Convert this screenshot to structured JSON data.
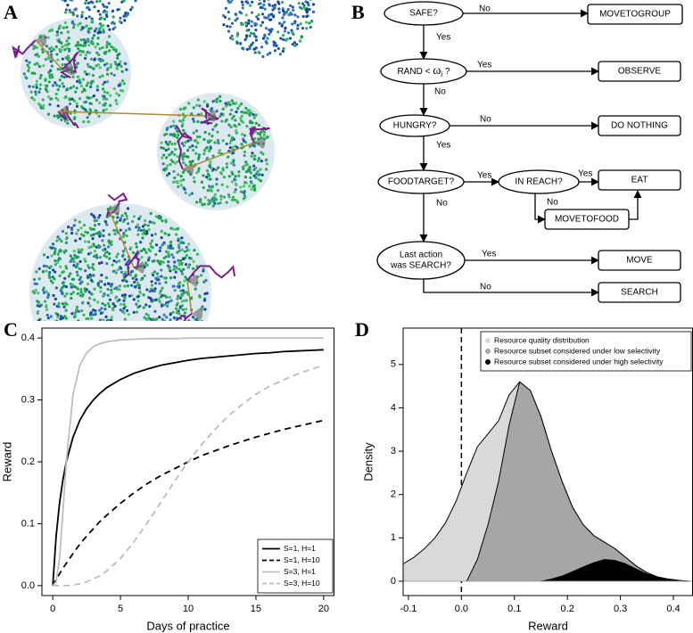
{
  "panel_labels": [
    "A",
    "B",
    "C",
    "D"
  ],
  "flowchart": {
    "nodes": [
      {
        "label": "SAFE?"
      },
      {
        "label": "MOVETOGROUP"
      },
      {
        "label": [
          "RAND < ",
          "ω",
          "i",
          " ?"
        ]
      },
      {
        "label": "OBSERVE"
      },
      {
        "label": "HUNGRY?"
      },
      {
        "label": "DO NOTHING"
      },
      {
        "label": "FOODTARGET?"
      },
      {
        "label": "IN REACH?"
      },
      {
        "label": "EAT"
      },
      {
        "label": "MOVETOFOOD"
      },
      {
        "label": [
          "Last action",
          "was SEARCH?"
        ]
      },
      {
        "label": "MOVE"
      },
      {
        "label": "SEARCH"
      }
    ],
    "edge_labels": [
      "No",
      "Yes",
      "Yes",
      "No",
      "No",
      "Yes",
      "Yes",
      "Yes",
      "No",
      "No",
      "Yes",
      "No"
    ]
  },
  "chart_data": [
    {
      "type": "line",
      "xlabel": "Days of practice",
      "ylabel": "Reward",
      "x": [
        0,
        0.25,
        0.5,
        0.75,
        1,
        1.5,
        2,
        2.5,
        3,
        3.5,
        4,
        5,
        6,
        7,
        8,
        9,
        10,
        11,
        12,
        13,
        14,
        15,
        16,
        17,
        18,
        19,
        20
      ],
      "series": [
        {
          "name": "S=1, H=1",
          "color": "#000000",
          "linestyle": "solid",
          "values": [
            0,
            0.08,
            0.133,
            0.171,
            0.2,
            0.24,
            0.267,
            0.286,
            0.3,
            0.311,
            0.32,
            0.333,
            0.343,
            0.35,
            0.356,
            0.36,
            0.364,
            0.367,
            0.369,
            0.371,
            0.373,
            0.375,
            0.376,
            0.378,
            0.379,
            0.38,
            0.381
          ]
        },
        {
          "name": "S=1, H=10",
          "color": "#000000",
          "linestyle": "dashed",
          "values": [
            0,
            0.01,
            0.019,
            0.028,
            0.036,
            0.052,
            0.067,
            0.08,
            0.092,
            0.104,
            0.114,
            0.133,
            0.15,
            0.165,
            0.178,
            0.189,
            0.2,
            0.21,
            0.218,
            0.226,
            0.233,
            0.24,
            0.246,
            0.252,
            0.257,
            0.262,
            0.267
          ]
        },
        {
          "name": "S=3, H=1",
          "color": "#bdbdbd",
          "linestyle": "solid",
          "values": [
            0,
            0.006,
            0.044,
            0.119,
            0.2,
            0.309,
            0.356,
            0.376,
            0.386,
            0.391,
            0.394,
            0.397,
            0.398,
            0.399,
            0.399,
            0.399,
            0.4,
            0.4,
            0.4,
            0.4,
            0.4,
            0.4,
            0.4,
            0.4,
            0.4,
            0.4,
            0.4
          ]
        },
        {
          "name": "S=3, H=10",
          "color": "#bdbdbd",
          "linestyle": "dashed",
          "values": [
            0,
            0,
            0,
            0,
            0,
            0.001,
            0.003,
            0.006,
            0.011,
            0.016,
            0.024,
            0.044,
            0.071,
            0.102,
            0.135,
            0.169,
            0.2,
            0.228,
            0.253,
            0.275,
            0.293,
            0.309,
            0.322,
            0.332,
            0.341,
            0.349,
            0.356
          ]
        }
      ],
      "xlim": [
        -0.8,
        20.8
      ],
      "ylim": [
        -0.016,
        0.416
      ],
      "xticks": [
        0,
        5,
        10,
        15,
        20
      ],
      "yticks": [
        {
          "value": 0,
          "label": "0.0"
        },
        0.1,
        0.2,
        0.3,
        0.4
      ],
      "legend": "lower right"
    },
    {
      "type": "area",
      "xlabel": "Reward",
      "ylabel": "Density",
      "x": [
        -0.11,
        -0.09,
        -0.07,
        -0.05,
        -0.03,
        -0.01,
        0.01,
        0.03,
        0.05,
        0.07,
        0.09,
        0.11,
        0.13,
        0.15,
        0.17,
        0.19,
        0.21,
        0.23,
        0.25,
        0.27,
        0.29,
        0.31,
        0.33,
        0.35,
        0.37,
        0.39,
        0.41,
        0.43
      ],
      "series": [
        {
          "name": "Resource quality distribution",
          "color": "#d9d9d9",
          "values": [
            0.4,
            0.55,
            0.75,
            1.0,
            1.35,
            1.85,
            2.5,
            3.1,
            3.4,
            3.7,
            4.3,
            4.6,
            4.4,
            3.8,
            3.0,
            2.3,
            1.7,
            1.3,
            1.05,
            0.9,
            0.75,
            0.55,
            0.35,
            0.2,
            0.1,
            0.05,
            0.02,
            0
          ]
        },
        {
          "name": "Resource subset considered under low selectivity",
          "color": "#a6a6a6",
          "values": [
            null,
            null,
            null,
            null,
            null,
            null,
            0,
            0.5,
            1.3,
            2.3,
            3.6,
            4.6,
            4.4,
            3.8,
            3.0,
            2.3,
            1.7,
            1.3,
            1.05,
            0.9,
            0.75,
            0.55,
            0.35,
            0.2,
            0.1,
            0.05,
            0.02,
            0
          ]
        },
        {
          "name": "Resource subset considered under high selectivity",
          "color": "#000000",
          "values": [
            null,
            null,
            null,
            null,
            null,
            null,
            null,
            null,
            null,
            null,
            null,
            null,
            null,
            0,
            0.05,
            0.12,
            0.22,
            0.33,
            0.43,
            0.5,
            0.48,
            0.4,
            0.28,
            0.17,
            0.09,
            0.04,
            0.01,
            0
          ]
        }
      ],
      "xlim": [
        -0.11,
        0.437
      ],
      "ylim": [
        -0.33,
        5.84
      ],
      "xticks": [
        -0.1,
        {
          "value": 0,
          "label": "0.0"
        },
        0.1,
        0.2,
        0.3,
        0.4
      ],
      "yticks": [
        0,
        1,
        2,
        3,
        4,
        5
      ],
      "vline": 0,
      "legend": "upper right"
    }
  ]
}
